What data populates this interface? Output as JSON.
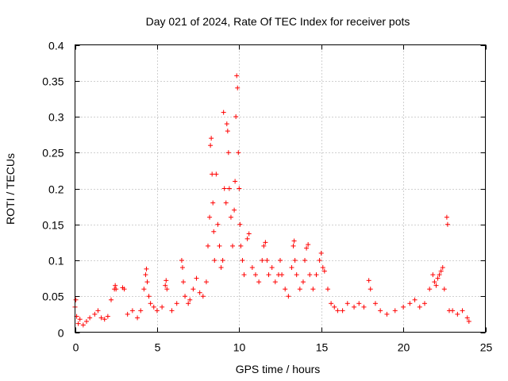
{
  "chart_data": {
    "type": "scatter",
    "title": "Day 021 of 2024, Rate Of TEC Index for receiver pots",
    "xlabel": "GPS time / hours",
    "ylabel": "ROTI / TECUs",
    "xlim": [
      0,
      25
    ],
    "ylim": [
      0,
      0.4
    ],
    "xticks": [
      0,
      5,
      10,
      15,
      20,
      25
    ],
    "yticks": [
      0,
      0.05,
      0.1,
      0.15,
      0.2,
      0.25,
      0.3,
      0.35,
      0.4
    ],
    "xtick_labels": [
      "0",
      "5",
      "10",
      "15",
      "20",
      "25"
    ],
    "ytick_labels": [
      "0",
      "0.05",
      "0.1",
      "0.15",
      "0.2",
      "0.25",
      "0.3",
      "0.35",
      "0.4"
    ],
    "grid": true,
    "marker": "+",
    "color": "#ff0000",
    "series": [
      {
        "name": "ROTI",
        "points": [
          [
            0.0,
            0.035
          ],
          [
            0.05,
            0.045
          ],
          [
            0.1,
            0.022
          ],
          [
            0.2,
            0.012
          ],
          [
            0.3,
            0.018
          ],
          [
            0.5,
            0.01
          ],
          [
            0.7,
            0.015
          ],
          [
            0.9,
            0.02
          ],
          [
            1.2,
            0.025
          ],
          [
            1.4,
            0.03
          ],
          [
            1.6,
            0.02
          ],
          [
            1.8,
            0.018
          ],
          [
            2.0,
            0.022
          ],
          [
            2.2,
            0.045
          ],
          [
            2.4,
            0.06
          ],
          [
            2.45,
            0.065
          ],
          [
            2.5,
            0.06
          ],
          [
            2.9,
            0.062
          ],
          [
            3.0,
            0.06
          ],
          [
            3.2,
            0.025
          ],
          [
            3.5,
            0.03
          ],
          [
            3.8,
            0.02
          ],
          [
            4.0,
            0.03
          ],
          [
            4.2,
            0.06
          ],
          [
            4.3,
            0.08
          ],
          [
            4.35,
            0.088
          ],
          [
            4.4,
            0.07
          ],
          [
            4.5,
            0.05
          ],
          [
            4.6,
            0.04
          ],
          [
            4.8,
            0.035
          ],
          [
            5.0,
            0.03
          ],
          [
            5.3,
            0.035
          ],
          [
            5.5,
            0.065
          ],
          [
            5.55,
            0.072
          ],
          [
            5.6,
            0.06
          ],
          [
            5.9,
            0.03
          ],
          [
            6.2,
            0.04
          ],
          [
            6.5,
            0.1
          ],
          [
            6.55,
            0.09
          ],
          [
            6.6,
            0.07
          ],
          [
            6.7,
            0.05
          ],
          [
            6.9,
            0.04
          ],
          [
            7.0,
            0.045
          ],
          [
            7.2,
            0.06
          ],
          [
            7.4,
            0.075
          ],
          [
            7.6,
            0.055
          ],
          [
            7.8,
            0.05
          ],
          [
            8.0,
            0.07
          ],
          [
            8.1,
            0.12
          ],
          [
            8.2,
            0.16
          ],
          [
            8.25,
            0.26
          ],
          [
            8.3,
            0.27
          ],
          [
            8.35,
            0.22
          ],
          [
            8.4,
            0.18
          ],
          [
            8.45,
            0.14
          ],
          [
            8.5,
            0.1
          ],
          [
            8.6,
            0.22
          ],
          [
            8.7,
            0.15
          ],
          [
            8.8,
            0.12
          ],
          [
            8.9,
            0.09
          ],
          [
            9.0,
            0.1
          ],
          [
            9.05,
            0.306
          ],
          [
            9.1,
            0.2
          ],
          [
            9.2,
            0.18
          ],
          [
            9.25,
            0.29
          ],
          [
            9.3,
            0.28
          ],
          [
            9.35,
            0.25
          ],
          [
            9.4,
            0.2
          ],
          [
            9.5,
            0.16
          ],
          [
            9.6,
            0.12
          ],
          [
            9.7,
            0.17
          ],
          [
            9.75,
            0.21
          ],
          [
            9.8,
            0.3
          ],
          [
            9.85,
            0.357
          ],
          [
            9.9,
            0.34
          ],
          [
            9.95,
            0.25
          ],
          [
            10.0,
            0.2
          ],
          [
            10.05,
            0.15
          ],
          [
            10.1,
            0.12
          ],
          [
            10.2,
            0.1
          ],
          [
            10.3,
            0.08
          ],
          [
            10.5,
            0.13
          ],
          [
            10.6,
            0.137
          ],
          [
            10.8,
            0.09
          ],
          [
            11.0,
            0.08
          ],
          [
            11.2,
            0.07
          ],
          [
            11.4,
            0.1
          ],
          [
            11.5,
            0.12
          ],
          [
            11.6,
            0.125
          ],
          [
            11.7,
            0.1
          ],
          [
            11.8,
            0.08
          ],
          [
            12.0,
            0.09
          ],
          [
            12.2,
            0.07
          ],
          [
            12.4,
            0.08
          ],
          [
            12.5,
            0.1
          ],
          [
            12.6,
            0.08
          ],
          [
            12.8,
            0.06
          ],
          [
            13.0,
            0.05
          ],
          [
            13.2,
            0.09
          ],
          [
            13.3,
            0.12
          ],
          [
            13.35,
            0.127
          ],
          [
            13.4,
            0.1
          ],
          [
            13.5,
            0.08
          ],
          [
            13.7,
            0.06
          ],
          [
            13.9,
            0.07
          ],
          [
            14.0,
            0.1
          ],
          [
            14.1,
            0.117
          ],
          [
            14.2,
            0.122
          ],
          [
            14.3,
            0.08
          ],
          [
            14.5,
            0.06
          ],
          [
            14.7,
            0.08
          ],
          [
            14.9,
            0.1
          ],
          [
            15.0,
            0.11
          ],
          [
            15.1,
            0.09
          ],
          [
            15.2,
            0.085
          ],
          [
            15.4,
            0.06
          ],
          [
            15.6,
            0.04
          ],
          [
            15.8,
            0.035
          ],
          [
            16.0,
            0.03
          ],
          [
            16.3,
            0.03
          ],
          [
            16.6,
            0.04
          ],
          [
            17.0,
            0.035
          ],
          [
            17.3,
            0.04
          ],
          [
            17.6,
            0.035
          ],
          [
            17.9,
            0.072
          ],
          [
            18.0,
            0.06
          ],
          [
            18.3,
            0.04
          ],
          [
            18.6,
            0.03
          ],
          [
            19.0,
            0.025
          ],
          [
            19.5,
            0.03
          ],
          [
            20.0,
            0.035
          ],
          [
            20.4,
            0.04
          ],
          [
            20.7,
            0.045
          ],
          [
            21.0,
            0.035
          ],
          [
            21.3,
            0.04
          ],
          [
            21.6,
            0.06
          ],
          [
            21.8,
            0.08
          ],
          [
            21.9,
            0.07
          ],
          [
            22.0,
            0.065
          ],
          [
            22.1,
            0.075
          ],
          [
            22.2,
            0.08
          ],
          [
            22.3,
            0.085
          ],
          [
            22.4,
            0.09
          ],
          [
            22.5,
            0.06
          ],
          [
            22.65,
            0.16
          ],
          [
            22.7,
            0.15
          ],
          [
            22.8,
            0.03
          ],
          [
            23.0,
            0.03
          ],
          [
            23.3,
            0.025
          ],
          [
            23.6,
            0.03
          ],
          [
            23.9,
            0.02
          ],
          [
            24.0,
            0.015
          ]
        ]
      }
    ]
  }
}
